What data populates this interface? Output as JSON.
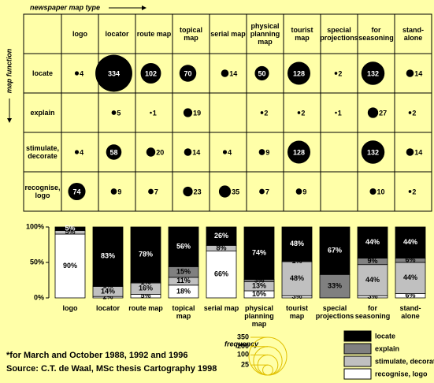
{
  "chart_data": [
    {
      "type": "bubble",
      "x_label": "newspaper map type",
      "y_label": "map function",
      "color": "#000000",
      "categories": [
        "logo",
        "locator",
        "route map",
        "topical map",
        "serial map",
        "physical planning map",
        "tourist map",
        "special projections",
        "for seasoning",
        "stand-alone"
      ],
      "series": [
        {
          "name": "locate",
          "values": [
            4,
            334,
            102,
            70,
            14,
            50,
            128,
            2,
            132,
            14
          ]
        },
        {
          "name": "explain",
          "values": [
            null,
            5,
            1,
            19,
            null,
            2,
            2,
            1,
            27,
            2
          ]
        },
        {
          "name": "stimulate, decorate",
          "values": [
            4,
            58,
            20,
            14,
            4,
            9,
            128,
            null,
            132,
            14
          ]
        },
        {
          "name": "recognise, logo",
          "values": [
            74,
            9,
            7,
            23,
            35,
            7,
            9,
            null,
            10,
            2
          ]
        }
      ],
      "size_legend": {
        "title": "frequency",
        "values": [
          350,
          200,
          100,
          25
        ]
      }
    },
    {
      "type": "bar",
      "stacked": true,
      "categories": [
        "logo",
        "locator",
        "route map",
        "topical map",
        "serial map",
        "physical planning map",
        "tourist map",
        "special projections",
        "for seasoning",
        "stand-alone"
      ],
      "ylim": [
        0,
        100
      ],
      "yticks": [
        {
          "value": 0,
          "label": "0%"
        },
        {
          "value": 50,
          "label": "50%"
        },
        {
          "value": 100,
          "label": "100%"
        }
      ],
      "series": [
        {
          "name": "locate",
          "color": "#000000",
          "values": [
            5,
            83,
            78,
            56,
            26,
            74,
            48,
            67,
            44,
            44
          ],
          "value_labels": [
            "5%",
            "83%",
            "78%",
            "56%",
            "26%",
            "74%",
            "48%",
            "67%",
            "44%",
            "44%"
          ]
        },
        {
          "name": "explain",
          "color": "#808080",
          "values": [
            0,
            1,
            1,
            15,
            0,
            3,
            1,
            33,
            9,
            6
          ],
          "value_labels": [
            null,
            "1%",
            "1%",
            "15%",
            null,
            "3%",
            "1%",
            "33%",
            "9%",
            "6%"
          ]
        },
        {
          "name": "stimulate, decorate",
          "color": "#c0c0c0",
          "values": [
            5,
            14,
            16,
            11,
            8,
            13,
            48,
            0,
            44,
            44
          ],
          "value_labels": [
            "5%",
            "14%",
            "16%",
            "11%",
            "8%",
            "13%",
            "48%",
            null,
            "44%",
            "44%"
          ]
        },
        {
          "name": "recognise, logo",
          "color": "#ffffff",
          "values": [
            90,
            2,
            5,
            18,
            66,
            10,
            3,
            0,
            3,
            6
          ],
          "value_labels": [
            "90%",
            "2%",
            "5%",
            "18%",
            "66%",
            "10%",
            "3%",
            null,
            "3%",
            "6%"
          ]
        }
      ]
    }
  ],
  "footnote": "*for March and October 1988, 1992 and 1996",
  "source": "Source: C.T. de Waal, MSc thesis Cartography 1998"
}
